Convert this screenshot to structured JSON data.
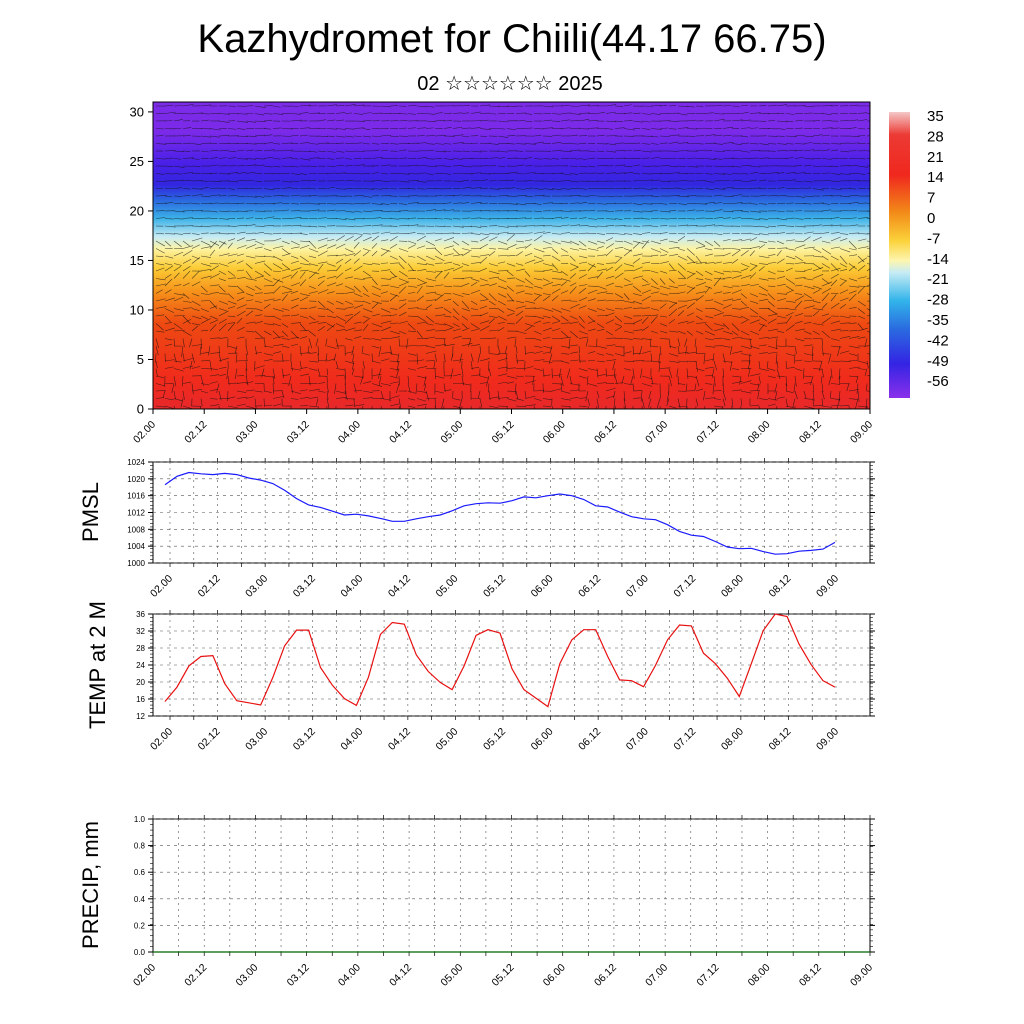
{
  "title": "Kazhydromet for Chiili(44.17 66.75)",
  "subtitle": "02 ☆☆☆☆☆☆ 2025",
  "time_ticks": [
    "02.00",
    "02.12",
    "03.00",
    "03.12",
    "04.00",
    "04.12",
    "05.00",
    "05.12",
    "06.00",
    "06.12",
    "07.00",
    "07.12",
    "08.00",
    "08.12",
    "09.00"
  ],
  "chart_data": [
    {
      "type": "heatmap",
      "name": "temperature cross-section with wind vectors",
      "y_ticks": [
        "0",
        "5",
        "10",
        "15",
        "20",
        "25",
        "30"
      ],
      "ylim": [
        0,
        31
      ],
      "colorbar_labels": [
        "35",
        "28",
        "21",
        "14",
        "7",
        "0",
        "-7",
        "-14",
        "-21",
        "-28",
        "-35",
        "-42",
        "-49",
        "-56"
      ],
      "colorscale": [
        "#f4c2c2",
        "#e8302a",
        "#f05a10",
        "#f7a01a",
        "#fbd33a",
        "#fdf080",
        "#c0e8f0",
        "#40b8e8",
        "#2a6fe0",
        "#3a2ae8",
        "#7a2ae8"
      ]
    },
    {
      "type": "line",
      "ylabel": "PMSL",
      "ylim": [
        1000,
        1024
      ],
      "y_ticks": [
        "1024",
        "1020",
        "1016",
        "1012",
        "1008",
        "1004",
        "1000"
      ],
      "color": "#1a1aff",
      "x": [
        0,
        1,
        2,
        3,
        4,
        5,
        6,
        7,
        8,
        9,
        10,
        11,
        12,
        13,
        14,
        15,
        16,
        17,
        18,
        19,
        20,
        21,
        22,
        23,
        24,
        25,
        26,
        27,
        28,
        29,
        30,
        31,
        32,
        33,
        34,
        35,
        36,
        37,
        38,
        39,
        40,
        41,
        42,
        43,
        44,
        45,
        46,
        47,
        48,
        49,
        50,
        51,
        52,
        53,
        54,
        55,
        56
      ],
      "values": [
        1018.6,
        1020.6,
        1021.5,
        1021.2,
        1021.0,
        1021.3,
        1021.0,
        1020.2,
        1019.7,
        1018.9,
        1017.3,
        1015.3,
        1013.8,
        1013.2,
        1012.3,
        1011.4,
        1011.6,
        1011.2,
        1010.6,
        1009.9,
        1009.9,
        1010.5,
        1011.0,
        1011.4,
        1012.4,
        1013.6,
        1014.1,
        1014.3,
        1014.2,
        1014.8,
        1015.7,
        1015.5,
        1016.0,
        1016.4,
        1016.0,
        1015.1,
        1013.6,
        1013.3,
        1012.1,
        1011.0,
        1010.5,
        1010.3,
        1009.1,
        1007.5,
        1006.6,
        1006.3,
        1005.1,
        1003.8,
        1003.4,
        1003.5,
        1002.7,
        1002.1,
        1002.2,
        1002.8,
        1003.0,
        1003.3,
        1004.9
      ]
    },
    {
      "type": "line",
      "ylabel": "TEMP at 2 M",
      "ylim": [
        12,
        36
      ],
      "y_ticks": [
        "36",
        "32",
        "28",
        "24",
        "20",
        "16",
        "12"
      ],
      "color": "#e81010",
      "x": [
        0,
        1,
        2,
        3,
        4,
        5,
        6,
        7,
        8,
        9,
        10,
        11,
        12,
        13,
        14,
        15,
        16,
        17,
        18,
        19,
        20,
        21,
        22,
        23,
        24,
        25,
        26,
        27,
        28,
        29,
        30,
        31,
        32,
        33,
        34,
        35,
        36,
        37,
        38,
        39,
        40,
        41,
        42,
        43,
        44,
        45,
        46,
        47,
        48,
        49,
        50,
        51,
        52,
        53,
        54,
        55,
        56
      ],
      "values": [
        15.4,
        18.8,
        23.8,
        26.0,
        26.2,
        19.6,
        15.6,
        15.1,
        14.6,
        21.0,
        28.5,
        32.2,
        32.2,
        23.4,
        19.2,
        16.1,
        14.5,
        21.1,
        31.2,
        34.0,
        33.6,
        26.4,
        22.5,
        19.9,
        18.2,
        23.8,
        31.0,
        32.3,
        31.5,
        23.1,
        18.2,
        16.2,
        14.2,
        24.3,
        29.9,
        32.3,
        32.3,
        26.0,
        20.5,
        20.3,
        18.9,
        23.9,
        29.9,
        33.4,
        33.2,
        26.8,
        24.3,
        20.9,
        16.6,
        24.3,
        32.1,
        36.0,
        35.4,
        28.9,
        24.1,
        20.3,
        18.8
      ]
    },
    {
      "type": "line",
      "ylabel": "PRECIP, mm",
      "ylim": [
        0,
        1
      ],
      "y_ticks": [
        "1.0",
        "0.8",
        "0.6",
        "0.4",
        "0.2",
        "0.0"
      ],
      "color": "#006400",
      "values": [
        0,
        0,
        0,
        0,
        0,
        0,
        0,
        0,
        0,
        0,
        0,
        0,
        0,
        0,
        0,
        0,
        0,
        0,
        0,
        0,
        0,
        0,
        0,
        0,
        0,
        0,
        0,
        0,
        0,
        0,
        0,
        0,
        0,
        0,
        0,
        0,
        0,
        0,
        0,
        0,
        0,
        0,
        0,
        0,
        0,
        0,
        0,
        0,
        0,
        0,
        0,
        0,
        0,
        0,
        0,
        0,
        0,
        0,
        0
      ]
    }
  ]
}
